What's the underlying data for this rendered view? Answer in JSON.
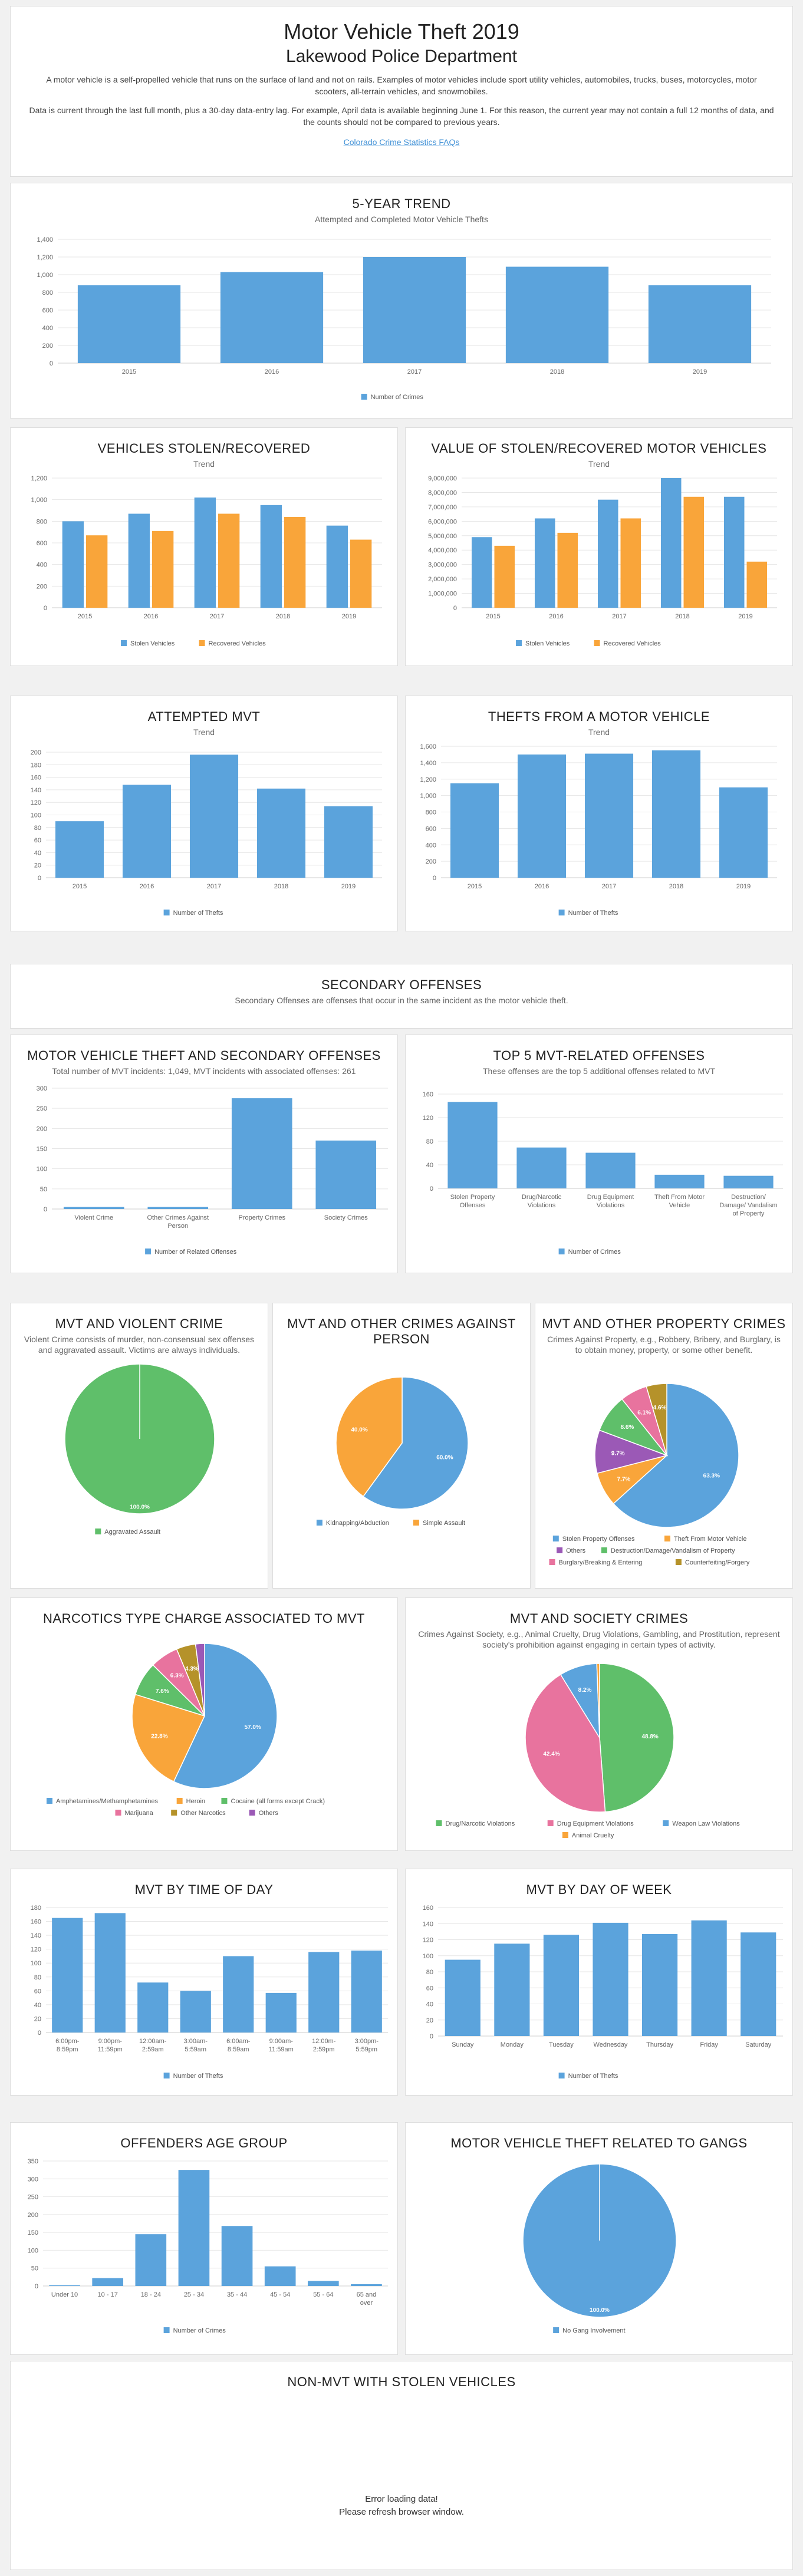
{
  "header": {
    "title": "Motor Vehicle Theft 2019",
    "subtitle": "Lakewood Police Department",
    "para1": "A motor vehicle is a self-propelled vehicle that runs on the surface of land and not on rails. Examples of motor vehicles include sport utility vehicles, automobiles, trucks, buses, motorcycles, motor scooters, all-terrain vehicles, and snowmobiles.",
    "para2": "Data is current through the last full month, plus a 30-day data-entry lag. For example, April data is available beginning June 1. For this reason, the current year may not contain a full 12 months of data, and the counts should not be compared to previous years.",
    "link": "Colorado Crime Statistics FAQs"
  },
  "colors": {
    "blue": "#5ba3dc",
    "orange": "#f9a53a",
    "green": "#5fbf6a",
    "pink": "#e8739e",
    "purple": "#9b59b6",
    "olive": "#b5922a",
    "teal": "#47b8a8"
  },
  "panels": {
    "trend5": {
      "title": "5-Year Trend",
      "sub": "Attempted and Completed Motor Vehicle Thefts"
    },
    "stolen": {
      "title": "Vehicles Stolen/Recovered",
      "sub": "Trend"
    },
    "value": {
      "title": "Value of Stolen/Recovered Motor Vehicles",
      "sub": "Trend"
    },
    "attempted": {
      "title": "Attempted MVT",
      "sub": "Trend"
    },
    "from_vehicle": {
      "title": "Thefts From a Motor Vehicle",
      "sub": "Trend"
    },
    "secondary": {
      "title": "Secondary Offenses",
      "sub": "Secondary Offenses are offenses that occur in the same incident as the motor vehicle theft."
    },
    "mvt_secondary": {
      "title": "Motor Vehicle Theft and Secondary Offenses",
      "sub": "Total number of MVT incidents: 1,049, MVT incidents with associated offenses: 261"
    },
    "top5": {
      "title": "Top 5 MVT-Related Offenses",
      "sub": "These offenses are the top 5 additional offenses related to MVT"
    },
    "violent": {
      "title": "MVT and Violent Crime",
      "sub": "Violent Crime consists of murder, non-consensual sex offenses and aggravated assault. Victims are always individuals."
    },
    "person": {
      "title": "MVT and Other Crimes Against Person",
      "sub": ""
    },
    "property": {
      "title": "MVT and Other Property Crimes",
      "sub": "Crimes Against Property, e.g., Robbery, Bribery, and Burglary, is to obtain money, property, or some other benefit."
    },
    "narcotics": {
      "title": "Narcotics Type Charge Associated to MVT",
      "sub": ""
    },
    "society": {
      "title": "MVT and Society Crimes",
      "sub": "Crimes Against Society, e.g., Animal Cruelty, Drug Violations, Gambling, and Prostitution, represent society's prohibition against engaging in certain types of activity."
    },
    "tod": {
      "title": "MVT by Time of Day",
      "sub": ""
    },
    "dow": {
      "title": "MVT by Day of Week",
      "sub": ""
    },
    "age": {
      "title": "Offenders Age Group",
      "sub": ""
    },
    "gangs": {
      "title": "Motor Vehicle Theft Related to Gangs",
      "sub": ""
    },
    "nonmvt": {
      "title": "Non-MVT with Stolen Vehicles",
      "sub": "",
      "msg1": "Error loading data!",
      "msg2": "Please refresh browser window."
    }
  },
  "chart_data": [
    {
      "id": "trend5",
      "type": "bar",
      "categories": [
        "2015",
        "2016",
        "2017",
        "2018",
        "2019"
      ],
      "series": [
        {
          "name": "Number of Crimes",
          "values": [
            880,
            1030,
            1200,
            1090,
            880
          ]
        }
      ],
      "ylim": [
        0,
        1400
      ],
      "yticks": [
        "0",
        "200",
        "400",
        "600",
        "800",
        "1,000",
        "1,200",
        "1,400"
      ]
    },
    {
      "id": "stolen",
      "type": "bar",
      "categories": [
        "2015",
        "2016",
        "2017",
        "2018",
        "2019"
      ],
      "series": [
        {
          "name": "Stolen Vehicles",
          "values": [
            800,
            870,
            1020,
            950,
            760
          ]
        },
        {
          "name": "Recovered Vehicles",
          "values": [
            670,
            710,
            870,
            840,
            630
          ]
        }
      ],
      "ylim": [
        0,
        1200
      ],
      "yticks": [
        "0",
        "200",
        "400",
        "600",
        "800",
        "1,000",
        "1,200"
      ]
    },
    {
      "id": "value",
      "type": "bar",
      "categories": [
        "2015",
        "2016",
        "2017",
        "2018",
        "2019"
      ],
      "series": [
        {
          "name": "Stolen Vehicles",
          "values": [
            4900000,
            6200000,
            7500000,
            9000000,
            7700000
          ]
        },
        {
          "name": "Recovered Vehicles",
          "values": [
            4300000,
            5200000,
            6200000,
            7700000,
            3200000
          ]
        }
      ],
      "ylim": [
        0,
        9000000
      ],
      "yticks": [
        "0",
        "1,000,000",
        "2,000,000",
        "3,000,000",
        "4,000,000",
        "5,000,000",
        "6,000,000",
        "7,000,000",
        "8,000,000",
        "9,000,000"
      ]
    },
    {
      "id": "attempted",
      "type": "bar",
      "categories": [
        "2015",
        "2016",
        "2017",
        "2018",
        "2019"
      ],
      "series": [
        {
          "name": "Number of Thefts",
          "values": [
            90,
            148,
            196,
            142,
            114
          ]
        }
      ],
      "ylim": [
        0,
        200
      ],
      "yticks": [
        "0",
        "20",
        "40",
        "60",
        "80",
        "100",
        "120",
        "140",
        "160",
        "180",
        "200"
      ]
    },
    {
      "id": "from_vehicle",
      "type": "bar",
      "categories": [
        "2015",
        "2016",
        "2017",
        "2018",
        "2019"
      ],
      "series": [
        {
          "name": "Number of Thefts",
          "values": [
            1150,
            1500,
            1510,
            1550,
            1100
          ]
        }
      ],
      "ylim": [
        0,
        1600
      ],
      "yticks": [
        "0",
        "200",
        "400",
        "600",
        "800",
        "1,000",
        "1,200",
        "1,400",
        "1,600"
      ]
    },
    {
      "id": "mvt_secondary",
      "type": "bar",
      "categories": [
        "Violent Crime",
        "Other Crimes Against Person",
        "Property Crimes",
        "Society Crimes"
      ],
      "series": [
        {
          "name": "Number of Related Offenses",
          "values": [
            5,
            5,
            275,
            170
          ]
        }
      ],
      "ylim": [
        0,
        300
      ],
      "yticks": [
        "0",
        "50",
        "100",
        "150",
        "200",
        "250",
        "300"
      ]
    },
    {
      "id": "top5",
      "type": "bar",
      "categories": [
        "Stolen Property Offenses",
        "Drug/Narcotic Violations",
        "Drug Equipment Violations",
        "Theft From Motor Vehicle",
        "Destruction/ Damage/ Vandalism of Property"
      ],
      "series": [
        {
          "name": "Number of Crimes",
          "values": [
            165,
            78,
            68,
            26,
            24
          ]
        }
      ],
      "ylim": [
        0,
        180
      ],
      "yticks": [
        "0",
        "40",
        "80",
        "120",
        "160"
      ]
    },
    {
      "id": "violent",
      "type": "pie",
      "labels": [
        "Aggravated Assault"
      ],
      "values": [
        100.0
      ]
    },
    {
      "id": "person",
      "type": "pie",
      "labels": [
        "Kidnapping/Abduction",
        "Simple Assault"
      ],
      "values": [
        60.0,
        40.0
      ]
    },
    {
      "id": "property",
      "type": "pie",
      "labels": [
        "Stolen Property Offenses",
        "Theft From Motor Vehicle",
        "Others",
        "Destruction/Damage/Vandalism of Property",
        "Burglary/Breaking & Entering",
        "Counterfeiting/Forgery"
      ],
      "values": [
        63.3,
        7.7,
        9.7,
        8.6,
        6.1,
        4.6
      ]
    },
    {
      "id": "narcotics",
      "type": "pie",
      "labels": [
        "Amphetamines/Methamphetamines",
        "Heroin",
        "Cocaine (all forms except Crack)",
        "Marijuana",
        "Other Narcotics",
        "Others"
      ],
      "values": [
        57.0,
        22.8,
        7.6,
        6.3,
        4.3,
        2.0
      ]
    },
    {
      "id": "society",
      "type": "pie",
      "labels": [
        "Drug/Narcotic Violations",
        "Drug Equipment Violations",
        "Weapon Law Violations",
        "Animal Cruelty"
      ],
      "values": [
        48.8,
        42.4,
        8.2,
        0.6
      ]
    },
    {
      "id": "tod",
      "type": "bar",
      "categories": [
        "6:00pm- 8:59pm",
        "9:00pm- 11:59pm",
        "12:00am- 2:59am",
        "3:00am- 5:59am",
        "6:00am- 8:59am",
        "9:00am- 11:59am",
        "12:00m- 2:59pm",
        "3:00pm- 5:59pm"
      ],
      "series": [
        {
          "name": "Number of Thefts",
          "values": [
            165,
            172,
            72,
            60,
            110,
            57,
            116,
            118
          ]
        }
      ],
      "ylim": [
        0,
        180
      ],
      "yticks": [
        "0",
        "20",
        "40",
        "60",
        "80",
        "100",
        "120",
        "140",
        "160",
        "180"
      ]
    },
    {
      "id": "dow",
      "type": "bar",
      "categories": [
        "Sunday",
        "Monday",
        "Tuesday",
        "Wednesday",
        "Thursday",
        "Friday",
        "Saturday"
      ],
      "series": [
        {
          "name": "Number of Thefts",
          "values": [
            95,
            115,
            126,
            141,
            127,
            144,
            129
          ]
        }
      ],
      "ylim": [
        0,
        160
      ],
      "yticks": [
        "0",
        "20",
        "40",
        "60",
        "80",
        "100",
        "120",
        "140",
        "160"
      ]
    },
    {
      "id": "age",
      "type": "bar",
      "categories": [
        "Under 10",
        "10 - 17",
        "18 - 24",
        "25 - 34",
        "35 - 44",
        "45 - 54",
        "55 - 64",
        "65 and over"
      ],
      "series": [
        {
          "name": "Number of Crimes",
          "values": [
            2,
            22,
            145,
            325,
            168,
            55,
            14,
            5
          ]
        }
      ],
      "ylim": [
        0,
        350
      ],
      "yticks": [
        "0",
        "50",
        "100",
        "150",
        "200",
        "250",
        "300",
        "350"
      ]
    },
    {
      "id": "gangs",
      "type": "pie",
      "labels": [
        "No Gang Involvement"
      ],
      "values": [
        100.0
      ]
    }
  ]
}
